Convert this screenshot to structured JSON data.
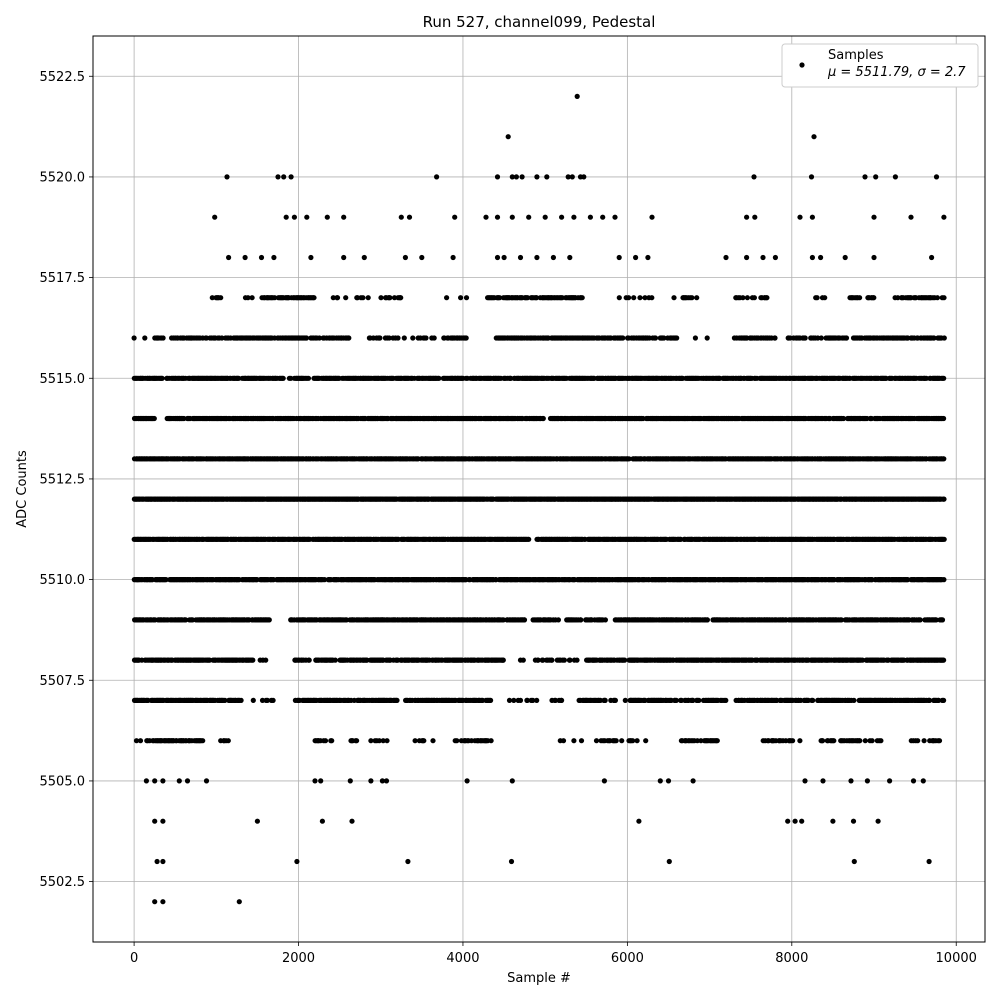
{
  "chart_data": {
    "type": "scatter",
    "title": "Run 527, channel099, Pedestal",
    "xlabel": "Sample #",
    "ylabel": "ADC Counts",
    "xlim": [
      -500,
      10350
    ],
    "ylim": [
      5501.0,
      5523.5
    ],
    "xticks": [
      0,
      2000,
      4000,
      6000,
      8000,
      10000
    ],
    "xtick_labels": [
      "0",
      "2000",
      "4000",
      "6000",
      "8000",
      "10000"
    ],
    "yticks": [
      5502.5,
      5505.0,
      5507.5,
      5510.0,
      5512.5,
      5515.0,
      5517.5,
      5520.0,
      5522.5
    ],
    "ytick_labels": [
      "5502.5",
      "5505.0",
      "5507.5",
      "5510.0",
      "5512.5",
      "5515.0",
      "5517.5",
      "5520.0",
      "5522.5"
    ],
    "grid": true,
    "legend_position": "top-right",
    "n_samples": 9850,
    "color": "#000000",
    "series": [
      {
        "name": "Samples",
        "label": "μ = 5511.79, σ = 2.7",
        "points": [
          [
            0,
            5516
          ],
          [
            130,
            5516
          ],
          [
            980,
            5519
          ],
          [
            1130,
            5520
          ],
          [
            1750,
            5520
          ],
          [
            1820,
            5520
          ],
          [
            1910,
            5520
          ],
          [
            3680,
            5520
          ],
          [
            4420,
            5520
          ],
          [
            4550,
            5521
          ],
          [
            4600,
            5520
          ],
          [
            4650,
            5520
          ],
          [
            4720,
            5520
          ],
          [
            4900,
            5520
          ],
          [
            5020,
            5520
          ],
          [
            5280,
            5520
          ],
          [
            5330,
            5520
          ],
          [
            5390,
            5522
          ],
          [
            5430,
            5520
          ],
          [
            5470,
            5520
          ],
          [
            7540,
            5520
          ],
          [
            8270,
            5521
          ],
          [
            8240,
            5520
          ],
          [
            8890,
            5520
          ],
          [
            9020,
            5520
          ],
          [
            9260,
            5520
          ],
          [
            9760,
            5520
          ],
          [
            1150,
            5518
          ],
          [
            1350,
            5518
          ],
          [
            1550,
            5518
          ],
          [
            1700,
            5518
          ],
          [
            2150,
            5518
          ],
          [
            2550,
            5518
          ],
          [
            2800,
            5518
          ],
          [
            3300,
            5518
          ],
          [
            3500,
            5518
          ],
          [
            3880,
            5518
          ],
          [
            4420,
            5518
          ],
          [
            4500,
            5518
          ],
          [
            4700,
            5518
          ],
          [
            4900,
            5518
          ],
          [
            5100,
            5518
          ],
          [
            5300,
            5518
          ],
          [
            5900,
            5518
          ],
          [
            6100,
            5518
          ],
          [
            6250,
            5518
          ],
          [
            7200,
            5518
          ],
          [
            7450,
            5518
          ],
          [
            7650,
            5518
          ],
          [
            7800,
            5518
          ],
          [
            8250,
            5518
          ],
          [
            8350,
            5518
          ],
          [
            8650,
            5518
          ],
          [
            9000,
            5518
          ],
          [
            9700,
            5518
          ],
          [
            1850,
            5519
          ],
          [
            1950,
            5519
          ],
          [
            2100,
            5519
          ],
          [
            2350,
            5519
          ],
          [
            2550,
            5519
          ],
          [
            3250,
            5519
          ],
          [
            3350,
            5519
          ],
          [
            3900,
            5519
          ],
          [
            4280,
            5519
          ],
          [
            4420,
            5519
          ],
          [
            4600,
            5519
          ],
          [
            4800,
            5519
          ],
          [
            5000,
            5519
          ],
          [
            5200,
            5519
          ],
          [
            5350,
            5519
          ],
          [
            5550,
            5519
          ],
          [
            5700,
            5519
          ],
          [
            5850,
            5519
          ],
          [
            6300,
            5519
          ],
          [
            7450,
            5519
          ],
          [
            7550,
            5519
          ],
          [
            8100,
            5519
          ],
          [
            8250,
            5519
          ],
          [
            9000,
            5519
          ],
          [
            9450,
            5519
          ],
          [
            9850,
            5519
          ],
          [
            250,
            5502
          ],
          [
            350,
            5502
          ],
          [
            1280,
            5502
          ],
          [
            280,
            5503
          ],
          [
            350,
            5503
          ],
          [
            1980,
            5503
          ],
          [
            3330,
            5503
          ],
          [
            4590,
            5503
          ],
          [
            6510,
            5503
          ],
          [
            8760,
            5503
          ],
          [
            9670,
            5503
          ],
          [
            250,
            5504
          ],
          [
            350,
            5504
          ],
          [
            1500,
            5504
          ],
          [
            2290,
            5504
          ],
          [
            2650,
            5504
          ],
          [
            6140,
            5504
          ],
          [
            7950,
            5504
          ],
          [
            8040,
            5504
          ],
          [
            8120,
            5504
          ],
          [
            8500,
            5504
          ],
          [
            8750,
            5504
          ],
          [
            9050,
            5504
          ],
          [
            150,
            5505
          ],
          [
            250,
            5505
          ],
          [
            350,
            5505
          ],
          [
            550,
            5505
          ],
          [
            650,
            5505
          ],
          [
            880,
            5505
          ],
          [
            2200,
            5505
          ],
          [
            2270,
            5505
          ],
          [
            2630,
            5505
          ],
          [
            2880,
            5505
          ],
          [
            3020,
            5505
          ],
          [
            3070,
            5505
          ],
          [
            4050,
            5505
          ],
          [
            4600,
            5505
          ],
          [
            5720,
            5505
          ],
          [
            6400,
            5505
          ],
          [
            6500,
            5505
          ],
          [
            6800,
            5505
          ],
          [
            8160,
            5505
          ],
          [
            8380,
            5505
          ],
          [
            8720,
            5505
          ],
          [
            8920,
            5505
          ],
          [
            9190,
            5505
          ],
          [
            9480,
            5505
          ],
          [
            9600,
            5505
          ]
        ]
      }
    ],
    "dense_rows": [
      {
        "y": 5515,
        "segments": [
          [
            0,
            350,
            0.9
          ],
          [
            380,
            9850,
            0.78
          ]
        ]
      },
      {
        "y": 5514,
        "segments": [
          [
            0,
            250,
            0.9
          ],
          [
            400,
            9850,
            0.82
          ]
        ]
      },
      {
        "y": 5513,
        "segments": [
          [
            0,
            9850,
            0.88
          ]
        ]
      },
      {
        "y": 5512,
        "segments": [
          [
            0,
            9850,
            0.95
          ]
        ]
      },
      {
        "y": 5511,
        "segments": [
          [
            0,
            4800,
            0.9
          ],
          [
            4900,
            9850,
            0.88
          ]
        ]
      },
      {
        "y": 5510,
        "segments": [
          [
            0,
            9850,
            0.85
          ]
        ]
      },
      {
        "y": 5509,
        "segments": [
          [
            0,
            1650,
            0.8
          ],
          [
            1900,
            4750,
            0.78
          ],
          [
            4850,
            5750,
            0.5
          ],
          [
            5850,
            9850,
            0.8
          ]
        ]
      },
      {
        "y": 5508,
        "segments": [
          [
            0,
            1450,
            0.82
          ],
          [
            1500,
            1600,
            0.5
          ],
          [
            1950,
            4500,
            0.7
          ],
          [
            4650,
            5400,
            0.3
          ],
          [
            5500,
            9850,
            0.78
          ]
        ]
      },
      {
        "y": 5507,
        "segments": [
          [
            0,
            1300,
            0.8
          ],
          [
            1400,
            1700,
            0.3
          ],
          [
            1950,
            3200,
            0.72
          ],
          [
            3300,
            4350,
            0.68
          ],
          [
            4550,
            5200,
            0.2
          ],
          [
            5400,
            7200,
            0.55
          ],
          [
            7300,
            8250,
            0.7
          ],
          [
            8300,
            9850,
            0.75
          ]
        ]
      },
      {
        "y": 5516,
        "segments": [
          [
            250,
            350,
            0.4
          ],
          [
            450,
            700,
            0.25
          ],
          [
            700,
            1300,
            0.6
          ],
          [
            1300,
            2100,
            0.78
          ],
          [
            2150,
            2650,
            0.55
          ],
          [
            2800,
            3650,
            0.35
          ],
          [
            3750,
            4050,
            0.55
          ],
          [
            4400,
            5950,
            0.85
          ],
          [
            6000,
            6600,
            0.45
          ],
          [
            6700,
            7000,
            0.25
          ],
          [
            7300,
            7800,
            0.55
          ],
          [
            7950,
            8700,
            0.55
          ],
          [
            8750,
            9850,
            0.65
          ]
        ]
      },
      {
        "y": 5517,
        "segments": [
          [
            950,
            1100,
            0.6
          ],
          [
            1350,
            1450,
            0.3
          ],
          [
            1550,
            2200,
            0.62
          ],
          [
            2350,
            2850,
            0.25
          ],
          [
            3000,
            3250,
            0.35
          ],
          [
            3800,
            4050,
            0.2
          ],
          [
            4300,
            5450,
            0.7
          ],
          [
            5850,
            6300,
            0.3
          ],
          [
            6550,
            6850,
            0.3
          ],
          [
            7300,
            7700,
            0.5
          ],
          [
            8250,
            8400,
            0.45
          ],
          [
            8700,
            9000,
            0.35
          ],
          [
            9250,
            9850,
            0.5
          ]
        ]
      },
      {
        "y": 5506,
        "segments": [
          [
            0,
            100,
            0.3
          ],
          [
            150,
            850,
            0.7
          ],
          [
            1050,
            1150,
            0.5
          ],
          [
            2200,
            2400,
            0.6
          ],
          [
            2600,
            2700,
            0.4
          ],
          [
            2850,
            3100,
            0.3
          ],
          [
            3400,
            3650,
            0.3
          ],
          [
            3900,
            4350,
            0.55
          ],
          [
            5150,
            5450,
            0.25
          ],
          [
            5600,
            6300,
            0.3
          ],
          [
            6650,
            7100,
            0.55
          ],
          [
            7650,
            8150,
            0.45
          ],
          [
            8350,
            8900,
            0.45
          ],
          [
            8950,
            9100,
            0.3
          ],
          [
            9450,
            9800,
            0.4
          ]
        ]
      }
    ]
  }
}
